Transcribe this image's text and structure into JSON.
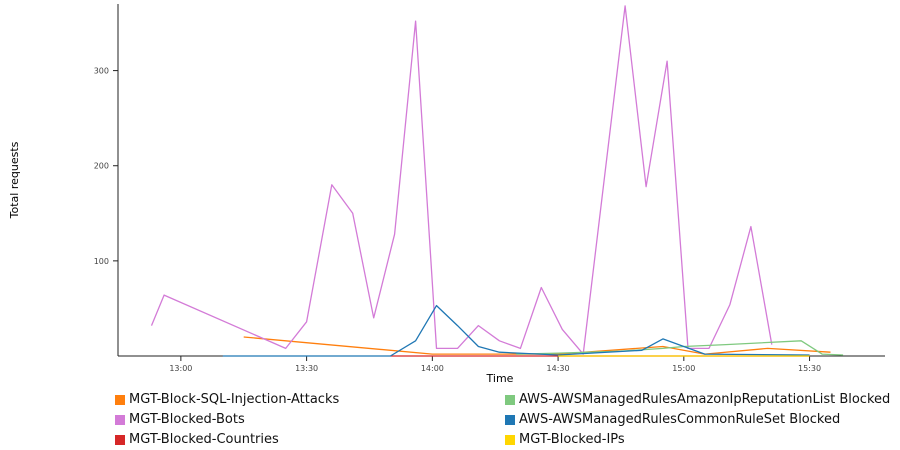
{
  "chart_data": {
    "type": "line",
    "title": "",
    "xlabel": "Time",
    "ylabel": "Total requests",
    "x_ticks": [
      "13:00",
      "13:30",
      "14:00",
      "14:30",
      "15:00",
      "15:30"
    ],
    "y_ticks": [
      100,
      200,
      300
    ],
    "xlim": [
      "12:45",
      "15:48"
    ],
    "ylim": [
      0,
      370
    ],
    "grid": false,
    "legend_position": "bottom",
    "series": [
      {
        "name": "MGT-Block-SQL-Injection-Attacks",
        "color": "#ff7f0e",
        "points": [
          [
            "13:15",
            20
          ],
          [
            "14:00",
            2
          ],
          [
            "14:30",
            2
          ],
          [
            "14:55",
            10
          ],
          [
            "15:05",
            2
          ],
          [
            "15:20",
            8
          ],
          [
            "15:35",
            4
          ]
        ]
      },
      {
        "name": "MGT-Blocked-Bots",
        "color": "#d37bd7",
        "points": [
          [
            "12:53",
            32
          ],
          [
            "12:56",
            64
          ],
          [
            "13:25",
            8
          ],
          [
            "13:30",
            36
          ],
          [
            "13:36",
            180
          ],
          [
            "13:41",
            150
          ],
          [
            "13:46",
            40
          ],
          [
            "13:51",
            128
          ],
          [
            "13:56",
            352
          ],
          [
            "14:01",
            8
          ],
          [
            "14:06",
            8
          ],
          [
            "14:11",
            32
          ],
          [
            "14:16",
            16
          ],
          [
            "14:21",
            8
          ],
          [
            "14:26",
            72
          ],
          [
            "14:31",
            28
          ],
          [
            "14:36",
            2
          ],
          [
            "14:46",
            368
          ],
          [
            "14:51",
            178
          ],
          [
            "14:56",
            310
          ],
          [
            "15:01",
            8
          ],
          [
            "15:06",
            8
          ],
          [
            "15:11",
            54
          ],
          [
            "15:16",
            136
          ],
          [
            "15:21",
            12
          ]
        ]
      },
      {
        "name": "MGT-Blocked-Countries",
        "color": "#d62728",
        "points": [
          [
            "13:50",
            0
          ],
          [
            "15:30",
            0
          ]
        ]
      },
      {
        "name": "AWS-AWSManagedRulesAmazonIpReputationList Blocked",
        "color": "#7fc97f",
        "points": [
          [
            "14:20",
            2
          ],
          [
            "14:30",
            3
          ],
          [
            "14:45",
            5
          ],
          [
            "14:55",
            8
          ],
          [
            "15:00",
            10
          ],
          [
            "15:10",
            12
          ],
          [
            "15:28",
            16
          ],
          [
            "15:33",
            2
          ],
          [
            "15:38",
            1
          ]
        ]
      },
      {
        "name": "AWS-AWSManagedRulesCommonRuleSet Blocked",
        "color": "#1f77b4",
        "points": [
          [
            "13:10",
            0
          ],
          [
            "13:50",
            0
          ],
          [
            "13:56",
            16
          ],
          [
            "14:01",
            53
          ],
          [
            "14:06",
            32
          ],
          [
            "14:11",
            10
          ],
          [
            "14:16",
            4
          ],
          [
            "14:30",
            1
          ],
          [
            "14:50",
            6
          ],
          [
            "14:55",
            18
          ],
          [
            "15:00",
            10
          ],
          [
            "15:05",
            2
          ],
          [
            "15:30",
            1
          ]
        ]
      },
      {
        "name": "MGT-Blocked-IPs",
        "color": "#ffd600",
        "points": [
          [
            "14:30",
            0
          ],
          [
            "15:30",
            0
          ]
        ]
      }
    ]
  }
}
